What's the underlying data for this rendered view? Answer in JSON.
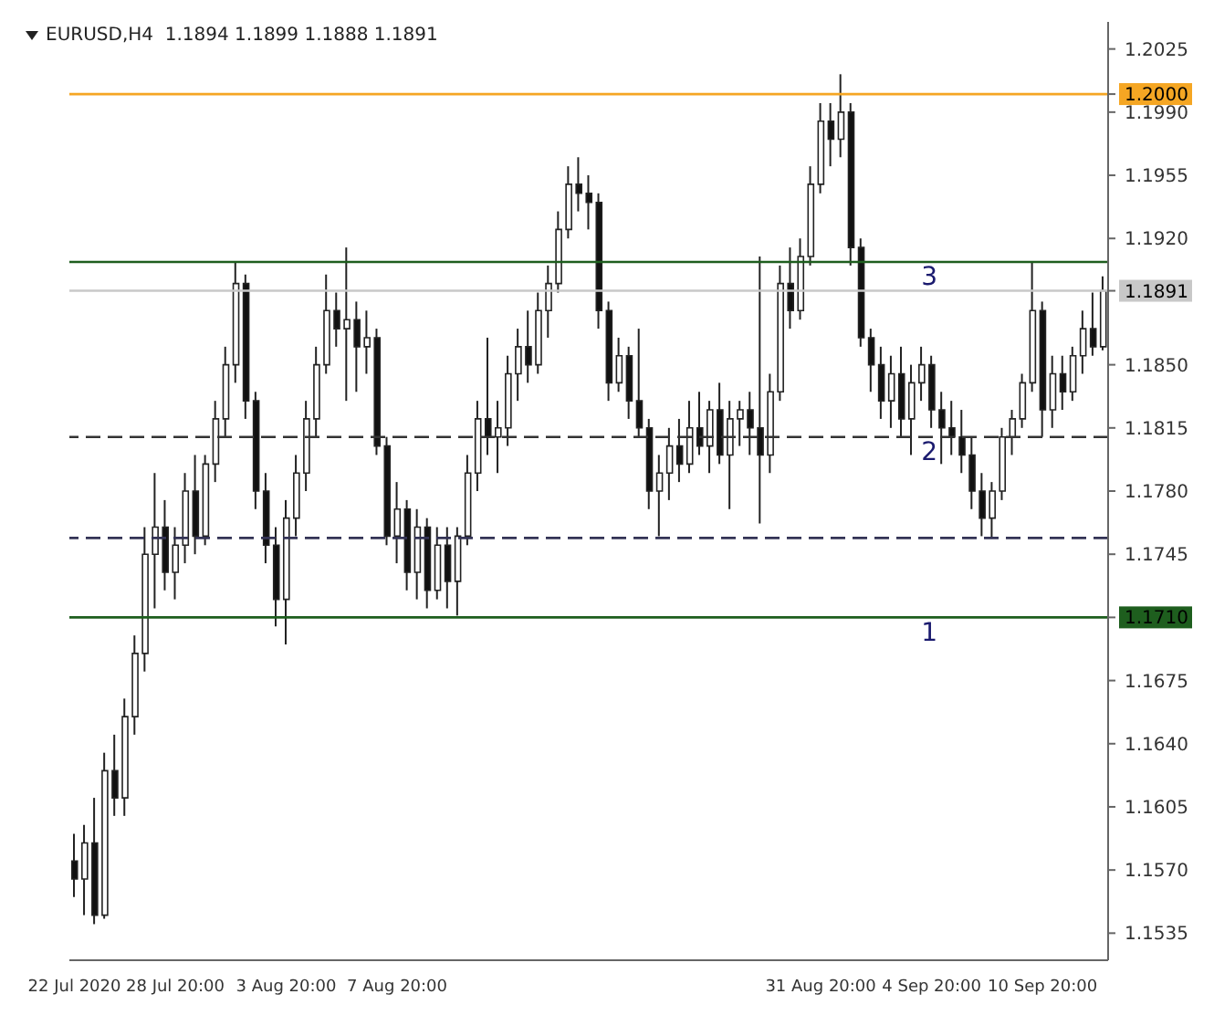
{
  "chart_data": {
    "type": "candlestick",
    "title": "EURUSD,H4  1.1894 1.1899 1.1888 1.1891",
    "categories": [
      "22 Jul 2020",
      null,
      null,
      null,
      null,
      null,
      null,
      null,
      null,
      null,
      "28 Jul 20:00",
      null,
      null,
      null,
      null,
      null,
      null,
      null,
      null,
      null,
      null,
      "3 Aug 20:00",
      null,
      null,
      null,
      null,
      null,
      null,
      null,
      null,
      null,
      null,
      "7 Aug 20:00",
      null,
      null,
      null,
      null,
      null,
      null,
      null,
      null,
      null,
      null,
      null,
      null,
      null,
      null,
      null,
      null,
      null,
      null,
      null,
      null,
      null,
      null,
      null,
      null,
      null,
      null,
      null,
      null,
      null,
      null,
      null,
      null,
      null,
      null,
      null,
      null,
      null,
      null,
      null,
      null,
      null,
      "31 Aug 20:00",
      null,
      null,
      null,
      null,
      null,
      null,
      null,
      null,
      null,
      null,
      "4 Sep 20:00",
      null,
      null,
      null,
      null,
      null,
      null,
      null,
      null,
      null,
      null,
      "10 Sep 20:00",
      null,
      null,
      null,
      null,
      null,
      null
    ],
    "ohlc": [
      [
        1.1575,
        1.159,
        1.1555,
        1.1565
      ],
      [
        1.1565,
        1.1595,
        1.1545,
        1.1585
      ],
      [
        1.1585,
        1.161,
        1.154,
        1.1545
      ],
      [
        1.1545,
        1.1635,
        1.1543,
        1.1625
      ],
      [
        1.1625,
        1.1645,
        1.16,
        1.161
      ],
      [
        1.161,
        1.1665,
        1.16,
        1.1655
      ],
      [
        1.1655,
        1.17,
        1.1645,
        1.169
      ],
      [
        1.169,
        1.176,
        1.168,
        1.1745
      ],
      [
        1.1745,
        1.179,
        1.1715,
        1.176
      ],
      [
        1.176,
        1.1775,
        1.1725,
        1.1735
      ],
      [
        1.1735,
        1.176,
        1.172,
        1.175
      ],
      [
        1.175,
        1.179,
        1.174,
        1.178
      ],
      [
        1.178,
        1.18,
        1.1745,
        1.1755
      ],
      [
        1.1755,
        1.18,
        1.175,
        1.1795
      ],
      [
        1.1795,
        1.183,
        1.1785,
        1.182
      ],
      [
        1.182,
        1.186,
        1.181,
        1.185
      ],
      [
        1.185,
        1.1907,
        1.184,
        1.1895
      ],
      [
        1.1895,
        1.19,
        1.182,
        1.183
      ],
      [
        1.183,
        1.1835,
        1.177,
        1.178
      ],
      [
        1.178,
        1.179,
        1.174,
        1.175
      ],
      [
        1.175,
        1.176,
        1.1705,
        1.172
      ],
      [
        1.172,
        1.1775,
        1.1695,
        1.1765
      ],
      [
        1.1765,
        1.18,
        1.1755,
        1.179
      ],
      [
        1.179,
        1.183,
        1.178,
        1.182
      ],
      [
        1.182,
        1.186,
        1.181,
        1.185
      ],
      [
        1.185,
        1.19,
        1.1845,
        1.188
      ],
      [
        1.188,
        1.189,
        1.186,
        1.187
      ],
      [
        1.187,
        1.1915,
        1.183,
        1.1875
      ],
      [
        1.1875,
        1.1885,
        1.1835,
        1.186
      ],
      [
        1.186,
        1.188,
        1.1845,
        1.1865
      ],
      [
        1.1865,
        1.187,
        1.18,
        1.1805
      ],
      [
        1.1805,
        1.181,
        1.175,
        1.1755
      ],
      [
        1.1755,
        1.1785,
        1.174,
        1.177
      ],
      [
        1.177,
        1.1775,
        1.1725,
        1.1735
      ],
      [
        1.1735,
        1.177,
        1.172,
        1.176
      ],
      [
        1.176,
        1.1765,
        1.1715,
        1.1725
      ],
      [
        1.1725,
        1.176,
        1.172,
        1.175
      ],
      [
        1.175,
        1.176,
        1.1715,
        1.173
      ],
      [
        1.173,
        1.176,
        1.1711,
        1.1755
      ],
      [
        1.1755,
        1.18,
        1.175,
        1.179
      ],
      [
        1.179,
        1.183,
        1.178,
        1.182
      ],
      [
        1.182,
        1.1865,
        1.18,
        1.181
      ],
      [
        1.181,
        1.183,
        1.179,
        1.1815
      ],
      [
        1.1815,
        1.1855,
        1.1805,
        1.1845
      ],
      [
        1.1845,
        1.187,
        1.183,
        1.186
      ],
      [
        1.186,
        1.188,
        1.184,
        1.185
      ],
      [
        1.185,
        1.189,
        1.1845,
        1.188
      ],
      [
        1.188,
        1.1905,
        1.1865,
        1.1895
      ],
      [
        1.1895,
        1.1935,
        1.189,
        1.1925
      ],
      [
        1.1925,
        1.196,
        1.192,
        1.195
      ],
      [
        1.195,
        1.1965,
        1.1935,
        1.1945
      ],
      [
        1.1945,
        1.1955,
        1.1925,
        1.194
      ],
      [
        1.194,
        1.1945,
        1.187,
        1.188
      ],
      [
        1.188,
        1.1885,
        1.183,
        1.184
      ],
      [
        1.184,
        1.1865,
        1.1835,
        1.1855
      ],
      [
        1.1855,
        1.186,
        1.182,
        1.183
      ],
      [
        1.183,
        1.187,
        1.181,
        1.1815
      ],
      [
        1.1815,
        1.182,
        1.177,
        1.178
      ],
      [
        1.178,
        1.18,
        1.1755,
        1.179
      ],
      [
        1.179,
        1.1815,
        1.1775,
        1.1805
      ],
      [
        1.1805,
        1.182,
        1.1785,
        1.1795
      ],
      [
        1.1795,
        1.183,
        1.179,
        1.1815
      ],
      [
        1.1815,
        1.1835,
        1.18,
        1.1805
      ],
      [
        1.1805,
        1.183,
        1.179,
        1.1825
      ],
      [
        1.1825,
        1.184,
        1.1795,
        1.18
      ],
      [
        1.18,
        1.183,
        1.177,
        1.182
      ],
      [
        1.182,
        1.183,
        1.1805,
        1.1825
      ],
      [
        1.1825,
        1.1835,
        1.18,
        1.1815
      ],
      [
        1.1815,
        1.191,
        1.1762,
        1.18
      ],
      [
        1.18,
        1.1845,
        1.179,
        1.1835
      ],
      [
        1.1835,
        1.1905,
        1.183,
        1.1895
      ],
      [
        1.1895,
        1.1915,
        1.187,
        1.188
      ],
      [
        1.188,
        1.192,
        1.1875,
        1.191
      ],
      [
        1.191,
        1.196,
        1.1905,
        1.195
      ],
      [
        1.195,
        1.1995,
        1.1945,
        1.1985
      ],
      [
        1.1985,
        1.1995,
        1.196,
        1.1975
      ],
      [
        1.1975,
        1.2011,
        1.1965,
        1.199
      ],
      [
        1.199,
        1.1995,
        1.1905,
        1.1915
      ],
      [
        1.1915,
        1.192,
        1.186,
        1.1865
      ],
      [
        1.1865,
        1.187,
        1.1835,
        1.185
      ],
      [
        1.185,
        1.186,
        1.182,
        1.183
      ],
      [
        1.183,
        1.1855,
        1.1815,
        1.1845
      ],
      [
        1.1845,
        1.186,
        1.181,
        1.182
      ],
      [
        1.182,
        1.185,
        1.18,
        1.184
      ],
      [
        1.184,
        1.186,
        1.183,
        1.185
      ],
      [
        1.185,
        1.1855,
        1.1815,
        1.1825
      ],
      [
        1.1825,
        1.1835,
        1.1795,
        1.1815
      ],
      [
        1.1815,
        1.183,
        1.18,
        1.181
      ],
      [
        1.181,
        1.1825,
        1.179,
        1.18
      ],
      [
        1.18,
        1.181,
        1.177,
        1.178
      ],
      [
        1.178,
        1.179,
        1.1755,
        1.1765
      ],
      [
        1.1765,
        1.1785,
        1.1754,
        1.178
      ],
      [
        1.178,
        1.1815,
        1.1775,
        1.181
      ],
      [
        1.181,
        1.1825,
        1.18,
        1.182
      ],
      [
        1.182,
        1.1845,
        1.1815,
        1.184
      ],
      [
        1.184,
        1.1907,
        1.1835,
        1.188
      ],
      [
        1.188,
        1.1885,
        1.181,
        1.1825
      ],
      [
        1.1825,
        1.1855,
        1.1815,
        1.1845
      ],
      [
        1.1845,
        1.1855,
        1.1825,
        1.1835
      ],
      [
        1.1835,
        1.186,
        1.183,
        1.1855
      ],
      [
        1.1855,
        1.188,
        1.1845,
        1.187
      ],
      [
        1.187,
        1.189,
        1.1855,
        1.186
      ],
      [
        1.186,
        1.1899,
        1.1858,
        1.1891
      ]
    ],
    "ylim": [
      1.152,
      1.204
    ],
    "yticks": [
      1.2025,
      {
        "value": 1.199,
        "label": "1.1990"
      },
      1.1955,
      {
        "value": 1.192,
        "label": "1.1920"
      },
      {
        "value": 1.185,
        "label": "1.1850"
      },
      1.1815,
      {
        "value": 1.178,
        "label": "1.1780"
      },
      1.1745,
      {
        "value": 1.171,
        "label": "1.1710"
      },
      1.1675,
      {
        "value": 1.164,
        "label": "1.1640"
      },
      1.1605,
      {
        "value": 1.157,
        "label": "1.1570"
      },
      1.1535,
      {
        "value": 1.2,
        "label": "1.2000"
      },
      {
        "value": 1.1891,
        "label": "1.1891"
      }
    ],
    "ref_lines": [
      {
        "axis": "y",
        "value": 1.2,
        "label": null,
        "color": "#f5a623",
        "line_style": "solid"
      },
      {
        "axis": "y",
        "value": 1.1907,
        "label": null,
        "color": "#1e5e1e",
        "line_style": "solid"
      },
      {
        "axis": "y",
        "value": 1.1891,
        "label": null,
        "color": "#c8c8c8",
        "line_style": "solid"
      },
      {
        "axis": "y",
        "value": 1.181,
        "label": null,
        "color": "#333333",
        "line_style": "dashed"
      },
      {
        "axis": "y",
        "value": 1.1754,
        "label": null,
        "color": "#333355",
        "line_style": "dashed"
      },
      {
        "axis": "y",
        "value": 1.171,
        "label": null,
        "color": "#1e5e1e",
        "line_style": "solid"
      }
    ],
    "annotations": [
      {
        "text": "3",
        "y": 1.1907
      },
      {
        "text": "2",
        "y": 1.181
      },
      {
        "text": "1",
        "y": 1.171
      }
    ]
  }
}
